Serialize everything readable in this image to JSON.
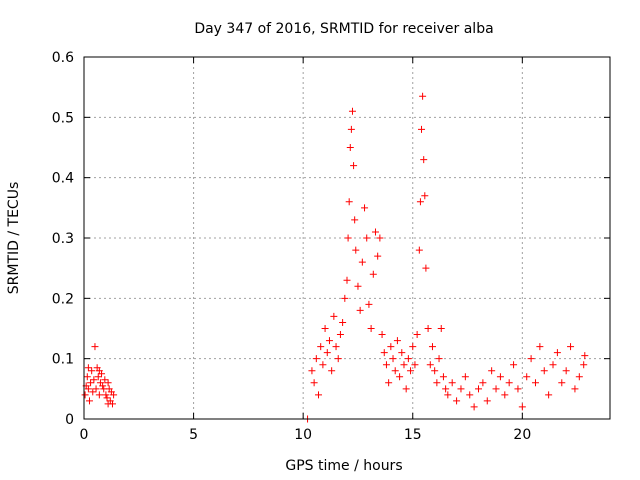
{
  "chart_data": {
    "type": "scatter",
    "title": "Day 347 of 2016, SRMTID for receiver alba",
    "xlabel": "GPS time / hours",
    "ylabel": "SRMTID / TECUs",
    "xlim": [
      0,
      24
    ],
    "ylim": [
      0,
      0.6
    ],
    "x_ticks": [
      0,
      5,
      10,
      15,
      20
    ],
    "x_tick_labels": [
      "0",
      "5",
      "10",
      "15",
      "20"
    ],
    "y_ticks": [
      0,
      0.1,
      0.2,
      0.3,
      0.4,
      0.5,
      0.6
    ],
    "y_tick_labels": [
      "0",
      "0.1",
      "0.2",
      "0.3",
      "0.4",
      "0.5",
      "0.6"
    ],
    "grid": true,
    "marker": "+",
    "color": "#ff0000",
    "series": [
      {
        "name": "SRMTID",
        "points": [
          [
            0.05,
            0.04
          ],
          [
            0.1,
            0.055
          ],
          [
            0.15,
            0.07
          ],
          [
            0.2,
            0.05
          ],
          [
            0.25,
            0.03
          ],
          [
            0.3,
            0.06
          ],
          [
            0.35,
            0.08
          ],
          [
            0.4,
            0.045
          ],
          [
            0.45,
            0.065
          ],
          [
            0.5,
            0.12
          ],
          [
            0.55,
            0.05
          ],
          [
            0.6,
            0.085
          ],
          [
            0.65,
            0.07
          ],
          [
            0.7,
            0.04
          ],
          [
            0.75,
            0.06
          ],
          [
            0.8,
            0.075
          ],
          [
            0.85,
            0.055
          ],
          [
            0.9,
            0.05
          ],
          [
            0.95,
            0.065
          ],
          [
            1.0,
            0.04
          ],
          [
            1.05,
            0.035
          ],
          [
            1.1,
            0.06
          ],
          [
            1.15,
            0.05
          ],
          [
            1.2,
            0.03
          ],
          [
            1.25,
            0.045
          ],
          [
            1.3,
            0.025
          ],
          [
            1.35,
            0.04
          ],
          [
            0.2,
            0.085
          ],
          [
            0.7,
            0.08
          ],
          [
            1.1,
            0.025
          ],
          [
            10.2,
            0.0
          ],
          [
            10.4,
            0.08
          ],
          [
            10.5,
            0.06
          ],
          [
            10.6,
            0.1
          ],
          [
            10.7,
            0.04
          ],
          [
            10.8,
            0.12
          ],
          [
            10.9,
            0.09
          ],
          [
            11.0,
            0.15
          ],
          [
            11.1,
            0.11
          ],
          [
            11.2,
            0.13
          ],
          [
            11.3,
            0.08
          ],
          [
            11.4,
            0.17
          ],
          [
            11.5,
            0.12
          ],
          [
            11.6,
            0.1
          ],
          [
            11.7,
            0.14
          ],
          [
            11.8,
            0.16
          ],
          [
            11.9,
            0.2
          ],
          [
            12.0,
            0.23
          ],
          [
            12.05,
            0.3
          ],
          [
            12.1,
            0.36
          ],
          [
            12.15,
            0.45
          ],
          [
            12.2,
            0.48
          ],
          [
            12.25,
            0.51
          ],
          [
            12.3,
            0.42
          ],
          [
            12.35,
            0.33
          ],
          [
            12.4,
            0.28
          ],
          [
            12.5,
            0.22
          ],
          [
            12.6,
            0.18
          ],
          [
            12.7,
            0.26
          ],
          [
            12.8,
            0.35
          ],
          [
            12.9,
            0.3
          ],
          [
            13.0,
            0.19
          ],
          [
            13.1,
            0.15
          ],
          [
            13.2,
            0.24
          ],
          [
            13.3,
            0.31
          ],
          [
            13.4,
            0.27
          ],
          [
            13.5,
            0.3
          ],
          [
            13.6,
            0.14
          ],
          [
            13.7,
            0.11
          ],
          [
            13.8,
            0.09
          ],
          [
            13.9,
            0.06
          ],
          [
            14.0,
            0.12
          ],
          [
            14.1,
            0.1
          ],
          [
            14.2,
            0.08
          ],
          [
            14.3,
            0.13
          ],
          [
            14.4,
            0.07
          ],
          [
            14.5,
            0.11
          ],
          [
            14.6,
            0.09
          ],
          [
            14.7,
            0.05
          ],
          [
            14.8,
            0.1
          ],
          [
            14.9,
            0.08
          ],
          [
            15.0,
            0.12
          ],
          [
            15.1,
            0.09
          ],
          [
            15.2,
            0.14
          ],
          [
            15.3,
            0.28
          ],
          [
            15.35,
            0.36
          ],
          [
            15.4,
            0.48
          ],
          [
            15.45,
            0.535
          ],
          [
            15.5,
            0.43
          ],
          [
            15.55,
            0.37
          ],
          [
            15.6,
            0.25
          ],
          [
            15.7,
            0.15
          ],
          [
            15.8,
            0.09
          ],
          [
            15.9,
            0.12
          ],
          [
            16.0,
            0.08
          ],
          [
            16.1,
            0.06
          ],
          [
            16.2,
            0.1
          ],
          [
            16.3,
            0.15
          ],
          [
            16.4,
            0.07
          ],
          [
            16.5,
            0.05
          ],
          [
            16.6,
            0.04
          ],
          [
            16.8,
            0.06
          ],
          [
            17.0,
            0.03
          ],
          [
            17.2,
            0.05
          ],
          [
            17.4,
            0.07
          ],
          [
            17.6,
            0.04
          ],
          [
            17.8,
            0.02
          ],
          [
            18.0,
            0.05
          ],
          [
            18.2,
            0.06
          ],
          [
            18.4,
            0.03
          ],
          [
            18.6,
            0.08
          ],
          [
            18.8,
            0.05
          ],
          [
            19.0,
            0.07
          ],
          [
            19.2,
            0.04
          ],
          [
            19.4,
            0.06
          ],
          [
            19.6,
            0.09
          ],
          [
            19.8,
            0.05
          ],
          [
            20.0,
            0.02
          ],
          [
            20.2,
            0.07
          ],
          [
            20.4,
            0.1
          ],
          [
            20.6,
            0.06
          ],
          [
            20.8,
            0.12
          ],
          [
            21.0,
            0.08
          ],
          [
            21.2,
            0.04
          ],
          [
            21.4,
            0.09
          ],
          [
            21.6,
            0.11
          ],
          [
            21.8,
            0.06
          ],
          [
            22.0,
            0.08
          ],
          [
            22.2,
            0.12
          ],
          [
            22.4,
            0.05
          ],
          [
            22.6,
            0.07
          ],
          [
            22.8,
            0.09
          ],
          [
            22.85,
            0.105
          ]
        ]
      }
    ]
  }
}
